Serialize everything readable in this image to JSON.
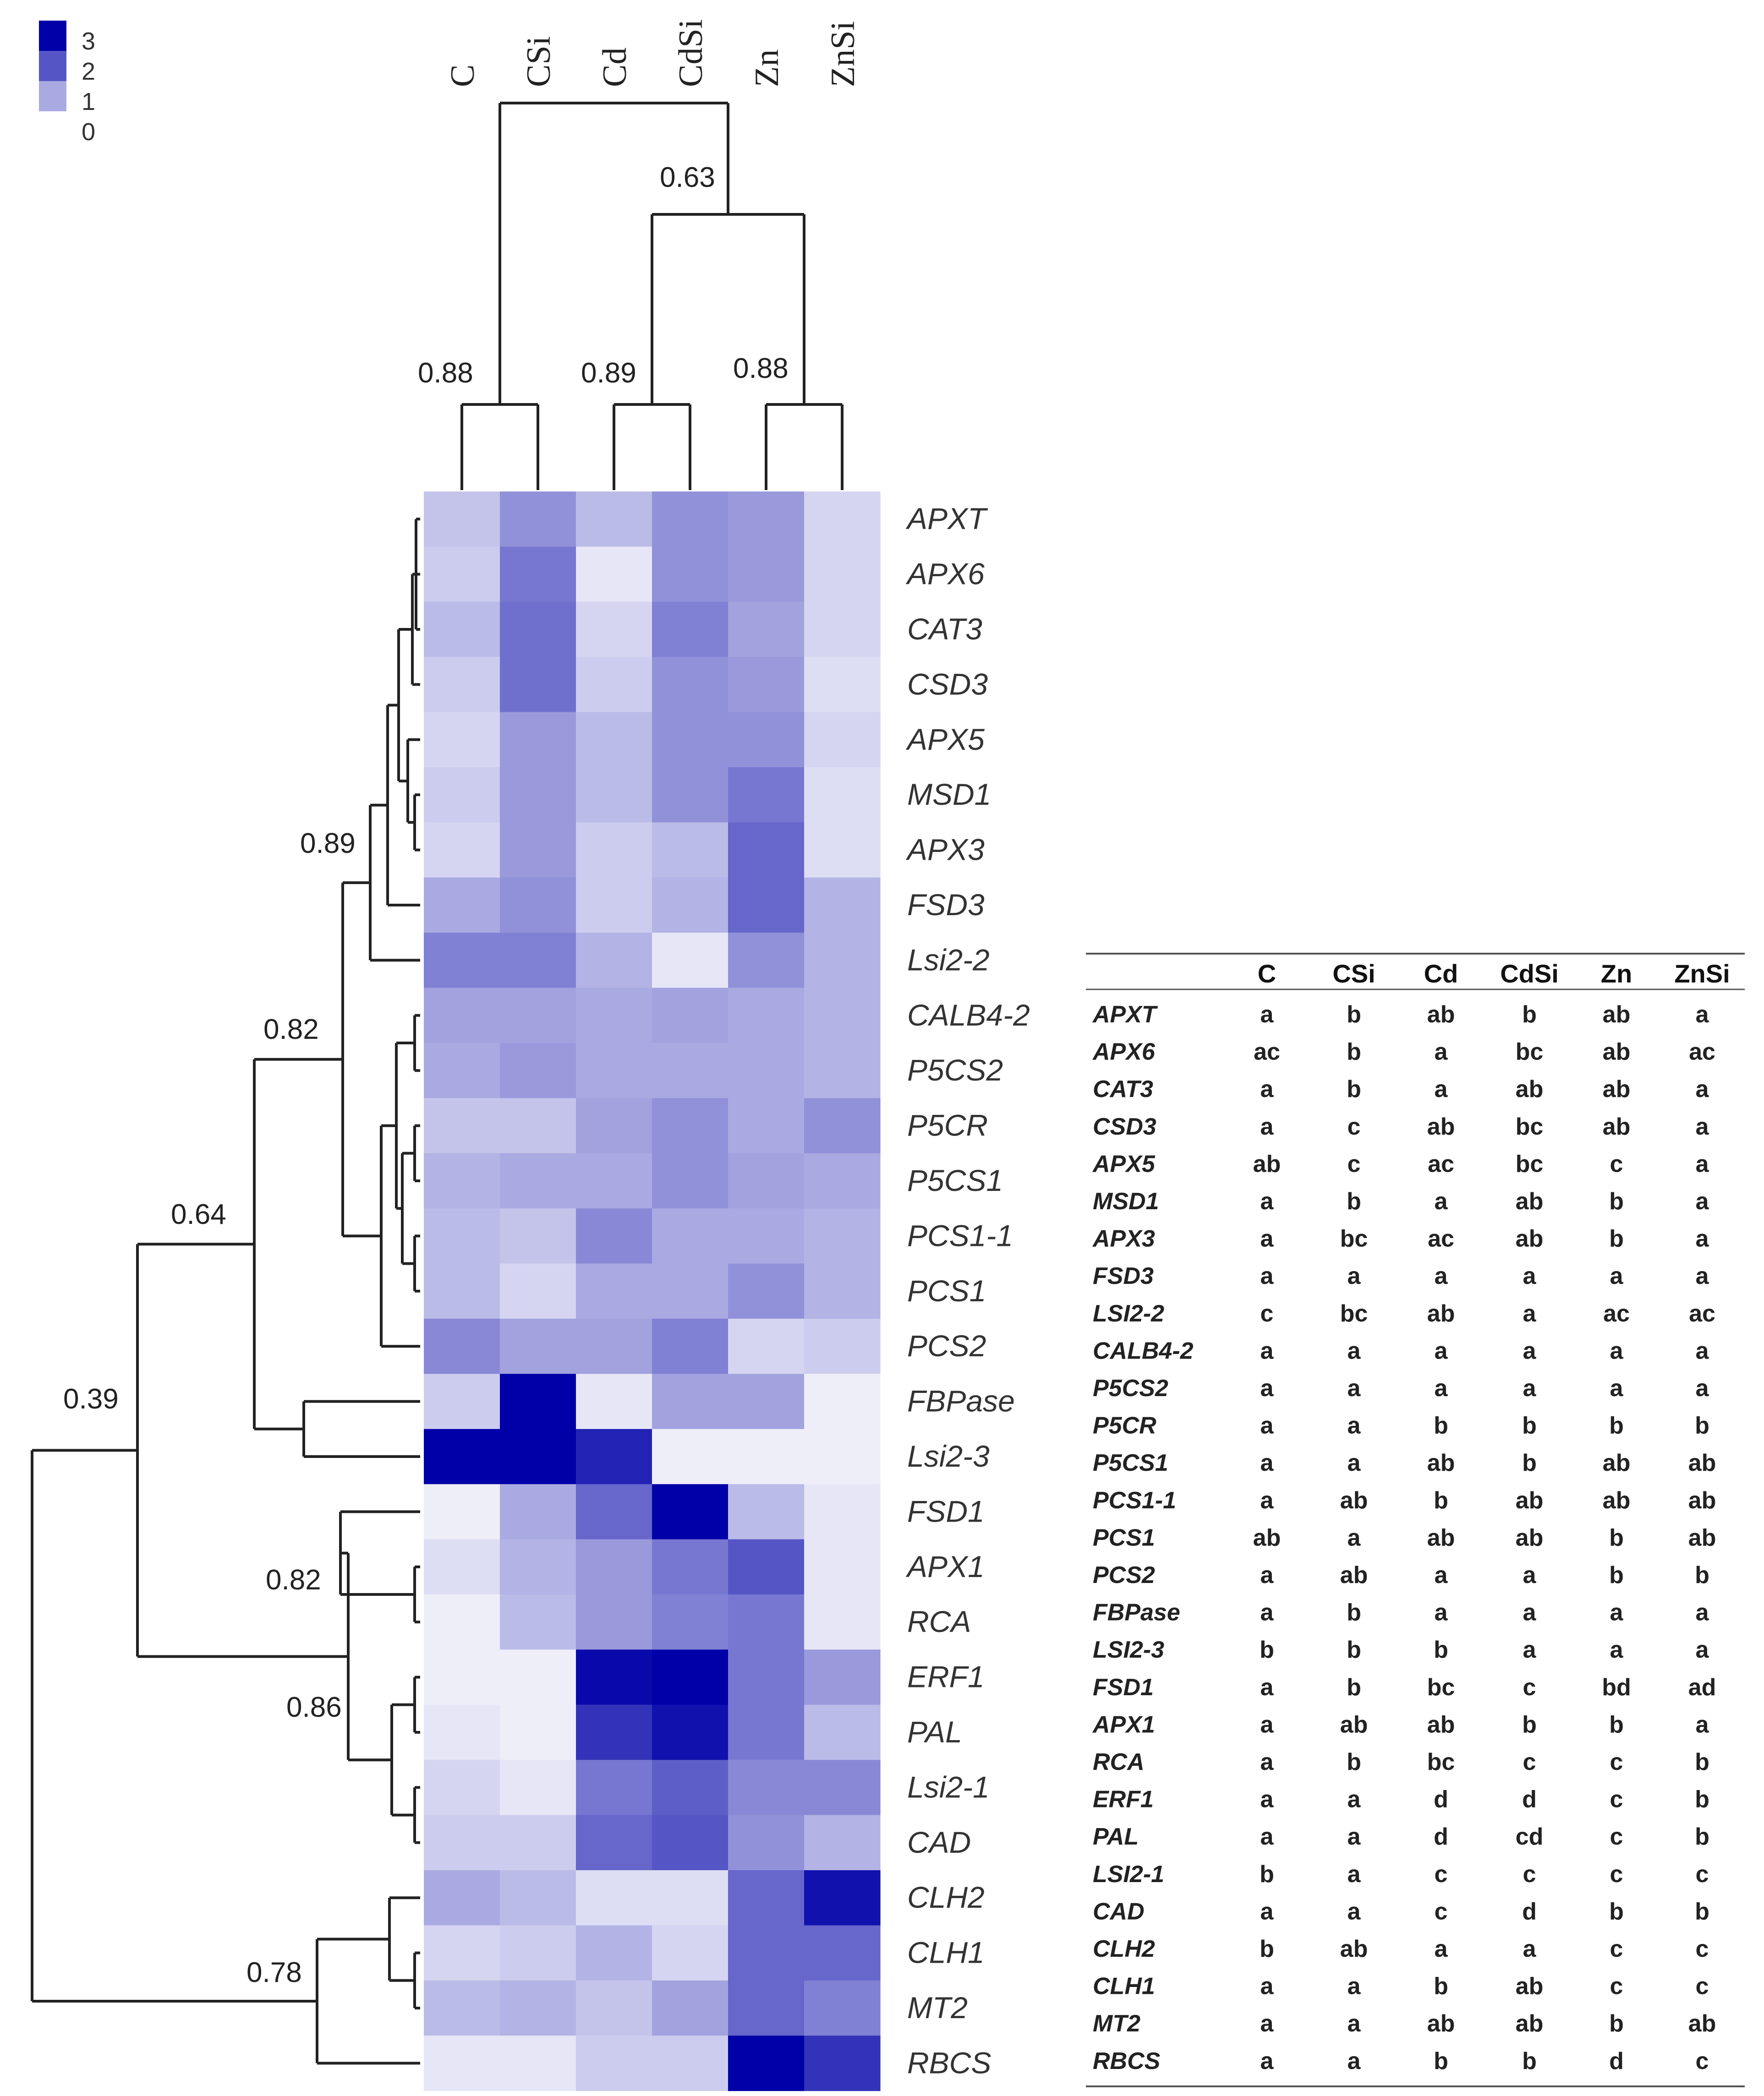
{
  "chart_data": {
    "type": "heatmap",
    "color_scale": {
      "min": 0,
      "max": 3,
      "low_color": "#ffffff",
      "high_color": "#0000a8"
    },
    "legend_ticks": [
      "3",
      "2",
      "1",
      "0"
    ],
    "columns": [
      "C",
      "CSi",
      "Cd",
      "CdSi",
      "Zn",
      "ZnSi"
    ],
    "rows": [
      "APXT",
      "APX6",
      "CAT3",
      "CSD3",
      "APX5",
      "MSD1",
      "APX3",
      "FSD3",
      "Lsi2-2",
      "CALB4-2",
      "P5CS2",
      "P5CR",
      "P5CS1",
      "PCS1-1",
      "PCS1",
      "PCS2",
      "FBPase",
      "Lsi2-3",
      "FSD1",
      "APX1",
      "RCA",
      "ERF1",
      "PAL",
      "Lsi2-1",
      "CAD",
      "CLH2",
      "CLH1",
      "MT2",
      "RBCS"
    ],
    "values": [
      [
        0.7,
        1.3,
        0.8,
        1.3,
        1.2,
        0.5
      ],
      [
        0.6,
        1.6,
        0.3,
        1.3,
        1.2,
        0.5
      ],
      [
        0.8,
        1.7,
        0.5,
        1.5,
        1.1,
        0.5
      ],
      [
        0.6,
        1.7,
        0.6,
        1.3,
        1.2,
        0.4
      ],
      [
        0.5,
        1.2,
        0.8,
        1.3,
        1.3,
        0.5
      ],
      [
        0.6,
        1.2,
        0.8,
        1.3,
        1.6,
        0.4
      ],
      [
        0.5,
        1.2,
        0.6,
        0.8,
        1.8,
        0.4
      ],
      [
        1.0,
        1.3,
        0.6,
        0.9,
        1.8,
        0.9
      ],
      [
        1.5,
        1.5,
        0.9,
        0.3,
        1.3,
        0.9
      ],
      [
        1.1,
        1.1,
        1.0,
        1.1,
        1.0,
        0.9
      ],
      [
        1.0,
        1.2,
        1.0,
        1.0,
        1.0,
        0.9
      ],
      [
        0.7,
        0.7,
        1.1,
        1.3,
        1.0,
        1.3
      ],
      [
        0.9,
        1.0,
        1.0,
        1.3,
        1.1,
        1.0
      ],
      [
        0.8,
        0.7,
        1.4,
        1.0,
        1.0,
        0.9
      ],
      [
        0.8,
        0.5,
        1.0,
        1.0,
        1.3,
        0.9
      ],
      [
        1.4,
        1.1,
        1.1,
        1.5,
        0.5,
        0.6
      ],
      [
        0.6,
        3.0,
        0.3,
        1.1,
        1.1,
        0.2
      ],
      [
        3.0,
        3.0,
        2.6,
        0.2,
        0.2,
        0.2
      ],
      [
        0.2,
        1.0,
        1.8,
        3.0,
        0.8,
        0.3
      ],
      [
        0.4,
        0.9,
        1.2,
        1.6,
        2.0,
        0.3
      ],
      [
        0.2,
        0.8,
        1.2,
        1.5,
        1.6,
        0.3
      ],
      [
        0.2,
        0.2,
        2.9,
        3.0,
        1.6,
        1.2
      ],
      [
        0.3,
        0.2,
        2.4,
        2.8,
        1.6,
        0.8
      ],
      [
        0.5,
        0.3,
        1.6,
        1.9,
        1.4,
        1.4
      ],
      [
        0.6,
        0.6,
        1.8,
        2.0,
        1.3,
        0.9
      ],
      [
        1.0,
        0.8,
        0.4,
        0.4,
        1.8,
        2.8
      ],
      [
        0.5,
        0.6,
        0.9,
        0.5,
        1.8,
        1.8
      ],
      [
        0.8,
        0.9,
        0.7,
        1.1,
        1.8,
        1.5
      ],
      [
        0.3,
        0.3,
        0.6,
        0.6,
        3.0,
        2.4
      ]
    ],
    "column_dendrogram_support": [
      "0.63",
      "0.88",
      "0.89",
      "0.88"
    ],
    "row_dendrogram_support": [
      "0.89",
      "0.82",
      "0.64",
      "0.39",
      "0.82",
      "0.86",
      "0.78"
    ],
    "significance_table": {
      "header": [
        "",
        "C",
        "CSi",
        "Cd",
        "CdSi",
        "Zn",
        "ZnSi"
      ],
      "rows": [
        [
          "APXT",
          "a",
          "b",
          "ab",
          "b",
          "ab",
          "a"
        ],
        [
          "APX6",
          "ac",
          "b",
          "a",
          "bc",
          "ab",
          "ac"
        ],
        [
          "CAT3",
          "a",
          "b",
          "a",
          "ab",
          "ab",
          "a"
        ],
        [
          "CSD3",
          "a",
          "c",
          "ab",
          "bc",
          "ab",
          "a"
        ],
        [
          "APX5",
          "ab",
          "c",
          "ac",
          "bc",
          "c",
          "a"
        ],
        [
          "MSD1",
          "a",
          "b",
          "a",
          "ab",
          "b",
          "a"
        ],
        [
          "APX3",
          "a",
          "bc",
          "ac",
          "ab",
          "b",
          "a"
        ],
        [
          "FSD3",
          "a",
          "a",
          "a",
          "a",
          "a",
          "a"
        ],
        [
          "LSI2-2",
          "c",
          "bc",
          "ab",
          "a",
          "ac",
          "ac"
        ],
        [
          "CALB4-2",
          "a",
          "a",
          "a",
          "a",
          "a",
          "a"
        ],
        [
          "P5CS2",
          "a",
          "a",
          "a",
          "a",
          "a",
          "a"
        ],
        [
          "P5CR",
          "a",
          "a",
          "b",
          "b",
          "b",
          "b"
        ],
        [
          "P5CS1",
          "a",
          "a",
          "ab",
          "b",
          "ab",
          "ab"
        ],
        [
          "PCS1-1",
          "a",
          "ab",
          "b",
          "ab",
          "ab",
          "ab"
        ],
        [
          "PCS1",
          "ab",
          "a",
          "ab",
          "ab",
          "b",
          "ab"
        ],
        [
          "PCS2",
          "a",
          "ab",
          "a",
          "a",
          "b",
          "b"
        ],
        [
          "FBPase",
          "a",
          "b",
          "a",
          "a",
          "a",
          "a"
        ],
        [
          "LSI2-3",
          "b",
          "b",
          "b",
          "a",
          "a",
          "a"
        ],
        [
          "FSD1",
          "a",
          "b",
          "bc",
          "c",
          "bd",
          "ad"
        ],
        [
          "APX1",
          "a",
          "ab",
          "ab",
          "b",
          "b",
          "a"
        ],
        [
          "RCA",
          "a",
          "b",
          "bc",
          "c",
          "c",
          "b"
        ],
        [
          "ERF1",
          "a",
          "a",
          "d",
          "d",
          "c",
          "b"
        ],
        [
          "PAL",
          "a",
          "a",
          "d",
          "cd",
          "c",
          "b"
        ],
        [
          "LSI2-1",
          "b",
          "a",
          "c",
          "c",
          "c",
          "c"
        ],
        [
          "CAD",
          "a",
          "a",
          "c",
          "d",
          "b",
          "b"
        ],
        [
          "CLH2",
          "b",
          "ab",
          "a",
          "a",
          "c",
          "c"
        ],
        [
          "CLH1",
          "a",
          "a",
          "b",
          "ab",
          "c",
          "c"
        ],
        [
          "MT2",
          "a",
          "a",
          "ab",
          "ab",
          "b",
          "ab"
        ],
        [
          "RBCS",
          "a",
          "a",
          "b",
          "b",
          "d",
          "c"
        ]
      ]
    }
  }
}
